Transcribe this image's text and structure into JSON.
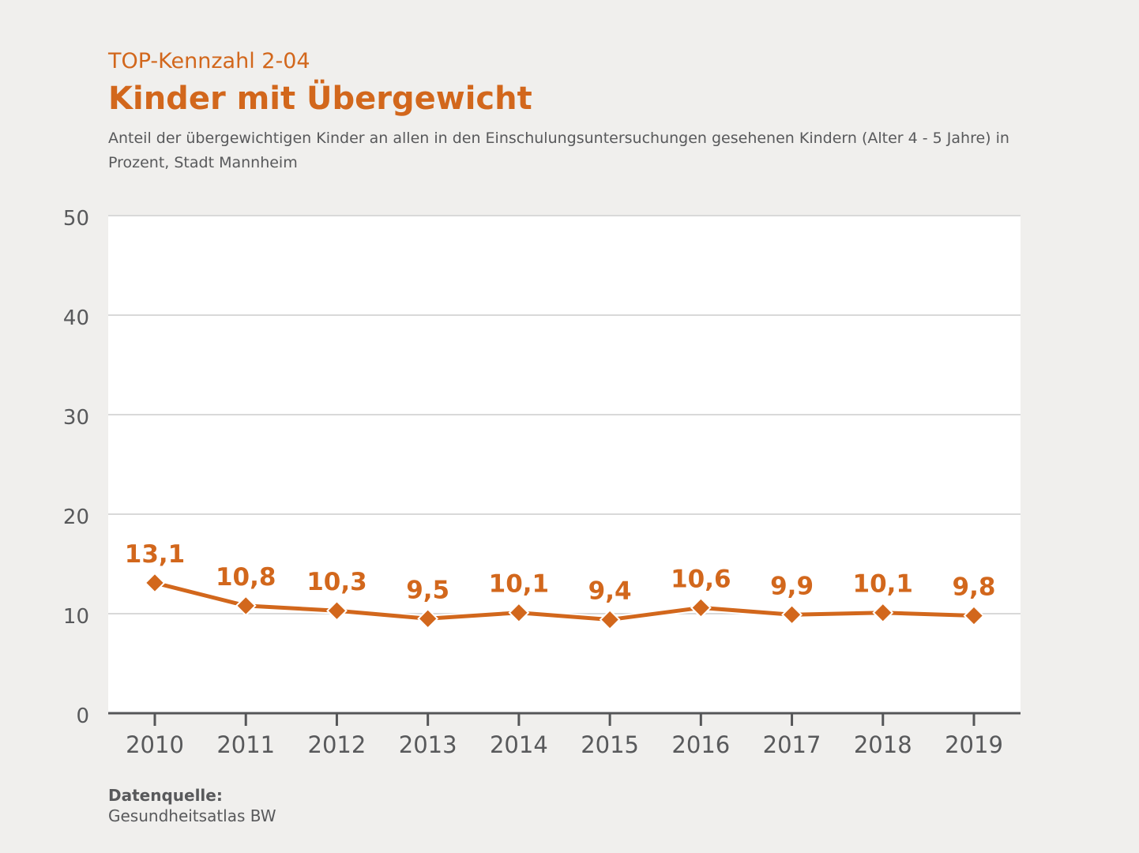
{
  "header": {
    "kicker": "TOP-Kennzahl 2-04",
    "title": "Kinder mit Übergewicht",
    "subtitle": "Anteil der übergewichtigen Kinder an allen in den Einschulungsuntersuchungen gesehenen Kindern (Alter 4 - 5 Jahre) in Prozent, Stadt Mannheim"
  },
  "chart_data": {
    "type": "line",
    "categories": [
      "2010",
      "2011",
      "2012",
      "2013",
      "2014",
      "2015",
      "2016",
      "2017",
      "2018",
      "2019"
    ],
    "series": [
      {
        "values": [
          13.1,
          10.8,
          10.3,
          9.5,
          10.1,
          9.4,
          10.6,
          9.9,
          10.1,
          9.8
        ],
        "labels": [
          "13,1",
          "10,8",
          "10,3",
          "9,5",
          "10,1",
          "9,4",
          "10,6",
          "9,9",
          "10,1",
          "9,8"
        ]
      }
    ],
    "title": "Kinder mit Übergewicht",
    "xlabel": "",
    "ylabel": "",
    "ylim": [
      0,
      50
    ],
    "yticks": [
      0,
      10,
      20,
      30,
      40,
      50
    ],
    "grid": true,
    "legend": "none",
    "marker": "diamond",
    "data_labels": true
  },
  "footer": {
    "source_label": "Datenquelle:",
    "source_value": "Gesundheitsatlas BW"
  },
  "colors": {
    "accent": "#d2671c",
    "text": "#58595b",
    "axis": "#555658",
    "grid": "#d9d9d9",
    "plot_bg": "#ffffff",
    "page_bg": "#f0efed"
  }
}
